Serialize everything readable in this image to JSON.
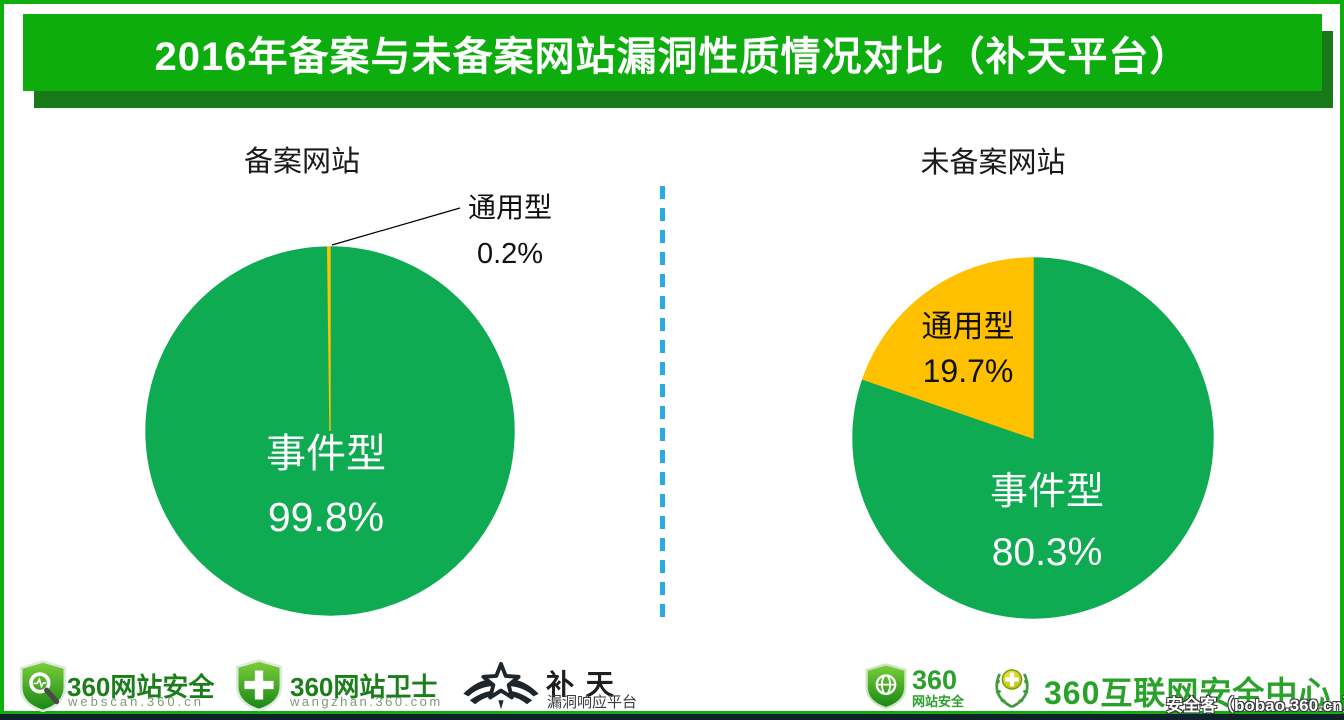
{
  "page": {
    "frame_color": "#0fae0c",
    "bottom_bar_color": "#0f212b",
    "background": "#ffffff"
  },
  "header": {
    "title": "2016年备案与未备案网站漏洞性质情况对比（补天平台）",
    "bg_color": "#0dad0d",
    "shadow_color": "#187919",
    "text_color": "#ffffff"
  },
  "divider": {
    "color": "#29abe2",
    "style": "dashed-vertical"
  },
  "chart_data": [
    {
      "type": "pie",
      "title": "备案网站",
      "slices": [
        {
          "label": "事件型",
          "pct": 99.8,
          "pct_text": "99.8%",
          "color": "#0eab52"
        },
        {
          "label": "通用型",
          "pct": 0.2,
          "pct_text": "0.2%",
          "color": "#ffc000"
        }
      ],
      "legend": "none",
      "note": "通用型 labeled via leader line outside pie; 事件型 labeled inside pie"
    },
    {
      "type": "pie",
      "title": "未备案网站",
      "slices": [
        {
          "label": "事件型",
          "pct": 80.3,
          "pct_text": "80.3%",
          "color": "#0eab52"
        },
        {
          "label": "通用型",
          "pct": 19.7,
          "pct_text": "19.7%",
          "color": "#ffc000"
        }
      ],
      "legend": "none",
      "note": "both labels rendered inside their slices"
    }
  ],
  "footer": {
    "webscan": {
      "title": "360网站安全",
      "subtitle": "webscan.360.cn"
    },
    "wangzhan": {
      "title": "360网站卫士",
      "subtitle": "wangzhan.360.com"
    },
    "butian": {
      "title": "补 天",
      "subtitle": "漏洞响应平台"
    },
    "site360": {
      "line1": "360",
      "line2": "网站安全"
    },
    "center360": {
      "title": "360互联网安全中心"
    },
    "watermark": "安全客（bobao.360.cn）"
  }
}
